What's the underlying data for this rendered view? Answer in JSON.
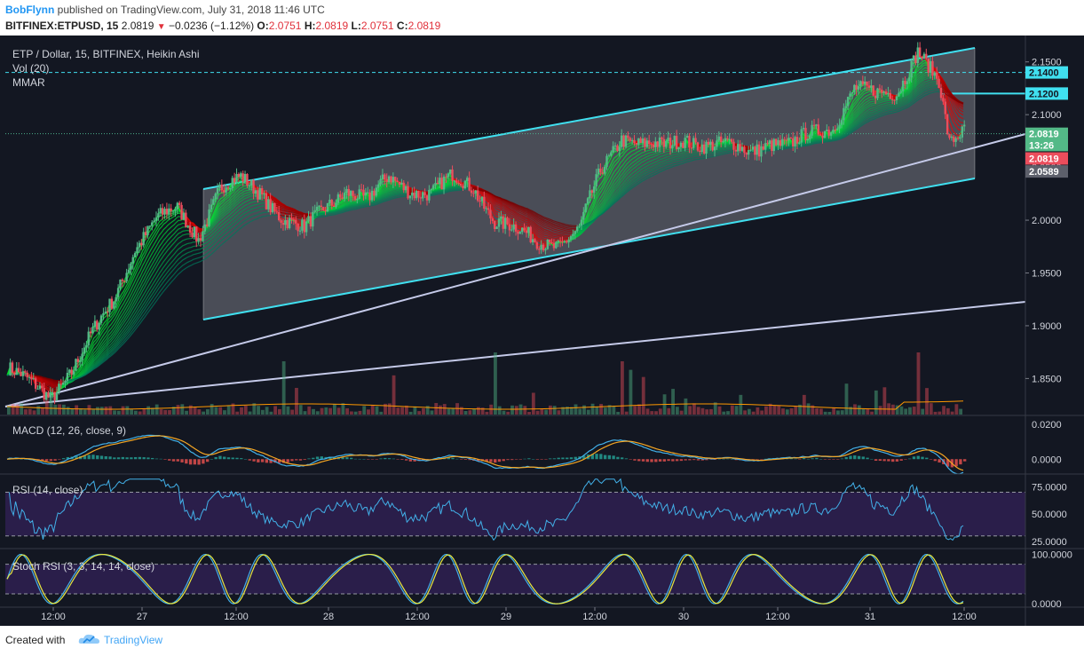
{
  "header": {
    "author": "BobFlynn",
    "published": "published on TradingView.com, July 31, 2018 11:46 UTC",
    "symbol": "BITFINEX:ETPUSD, 15",
    "last": "2.0819",
    "change": "−0.0236 (−1.12%)",
    "o_label": "O:",
    "o": "2.0751",
    "h_label": "H:",
    "h": "2.0819",
    "l_label": "L:",
    "l": "2.0751",
    "c_label": "C:",
    "c": "2.0819"
  },
  "legend": {
    "title": "ETP / Dollar, 15, BITFINEX, Heikin Ashi",
    "vol": "Vol (20)",
    "mmar": "MMAR",
    "macd": "MACD (12, 26, close, 9)",
    "rsi": "RSI (14, close)",
    "stoch": "Stoch RSI (3, 3, 14, 14, close)"
  },
  "price_axis": {
    "ticks": [
      "2.1500",
      "2.1000",
      "2.0500",
      "2.0000",
      "1.9500",
      "1.9000",
      "1.8500"
    ],
    "badges": {
      "level_high": "2.1400",
      "level_mid": "2.1200",
      "last": "2.0819",
      "countdown": "13:26",
      "heikin_last": "2.0819",
      "channel_low": "2.0589"
    }
  },
  "macd_axis": [
    "0.0200",
    "0.0000"
  ],
  "rsi_axis": [
    "75.0000",
    "50.0000",
    "25.0000"
  ],
  "stoch_axis": [
    "100.0000",
    "0.0000"
  ],
  "time_axis": [
    "12:00",
    "27",
    "12:00",
    "28",
    "12:00",
    "29",
    "12:00",
    "30",
    "12:00",
    "31",
    "12:00"
  ],
  "footer": {
    "created": "Created with",
    "brand": "TradingView"
  },
  "colors": {
    "background": "#131722",
    "up": "#53b987",
    "down": "#eb4d5c",
    "channel": "#40e0f0",
    "trend": "#c5cae9",
    "ribbon_up": "#00e640",
    "ribbon_down": "#e00000",
    "rsi": "#42b0e8",
    "stoch_k": "#42b0e8",
    "stoch_d": "#e8e840",
    "macd_signal": "#f5a623",
    "band_fill": "#2a1e4a"
  },
  "chart_data": [
    {
      "type": "candlestick",
      "title": "ETP / Dollar, 15, BITFINEX, Heikin Ashi",
      "x_ticks": [
        "12:00",
        "27",
        "12:00",
        "28",
        "12:00",
        "29",
        "12:00",
        "30",
        "12:00",
        "31",
        "12:00"
      ],
      "ylim": [
        1.815,
        2.175
      ],
      "close_path": [
        [
          0,
          1.86
        ],
        [
          10,
          1.845
        ],
        [
          20,
          1.833
        ],
        [
          30,
          1.858
        ],
        [
          40,
          1.892
        ],
        [
          50,
          1.925
        ],
        [
          60,
          1.975
        ],
        [
          70,
          2.0
        ],
        [
          80,
          2.01
        ],
        [
          90,
          1.985
        ],
        [
          100,
          2.03
        ],
        [
          110,
          2.038
        ],
        [
          120,
          2.025
        ],
        [
          130,
          2.002
        ],
        [
          140,
          1.99
        ],
        [
          150,
          2.012
        ],
        [
          160,
          2.03
        ],
        [
          170,
          2.018
        ],
        [
          180,
          2.04
        ],
        [
          190,
          2.03
        ],
        [
          200,
          2.025
        ],
        [
          210,
          2.04
        ],
        [
          220,
          2.032
        ],
        [
          230,
          2.0
        ],
        [
          240,
          1.99
        ],
        [
          250,
          1.98
        ],
        [
          260,
          1.978
        ],
        [
          270,
          1.99
        ],
        [
          280,
          2.045
        ],
        [
          290,
          2.08
        ],
        [
          300,
          2.072
        ],
        [
          310,
          2.068
        ],
        [
          320,
          2.078
        ],
        [
          330,
          2.072
        ],
        [
          340,
          2.07
        ],
        [
          350,
          2.065
        ],
        [
          360,
          2.075
        ],
        [
          370,
          2.07
        ],
        [
          380,
          2.082
        ],
        [
          390,
          2.09
        ],
        [
          400,
          2.125
        ],
        [
          410,
          2.118
        ],
        [
          420,
          2.122
        ],
        [
          430,
          2.162
        ],
        [
          440,
          2.128
        ],
        [
          445,
          2.07
        ],
        [
          452,
          2.087
        ]
      ],
      "horizontal_levels": [
        2.14,
        2.12
      ],
      "last_price": 2.0819
    },
    {
      "type": "bar",
      "title": "Vol (20)"
    },
    {
      "type": "line",
      "title": "MACD (12, 26, close, 9)",
      "series": [
        {
          "name": "MACD"
        },
        {
          "name": "Signal"
        }
      ],
      "ylim": [
        -0.008,
        0.024
      ],
      "y_ticks": [
        0.02,
        0.0
      ]
    },
    {
      "type": "line",
      "title": "RSI (14, close)",
      "ylim": [
        20,
        85
      ],
      "y_ticks": [
        75,
        50,
        25
      ],
      "band": [
        30,
        70
      ]
    },
    {
      "type": "line",
      "title": "Stoch RSI (3, 3, 14, 14, close)",
      "ylim": [
        -5,
        108
      ],
      "y_ticks": [
        100,
        0
      ],
      "band": [
        20,
        80
      ]
    }
  ]
}
